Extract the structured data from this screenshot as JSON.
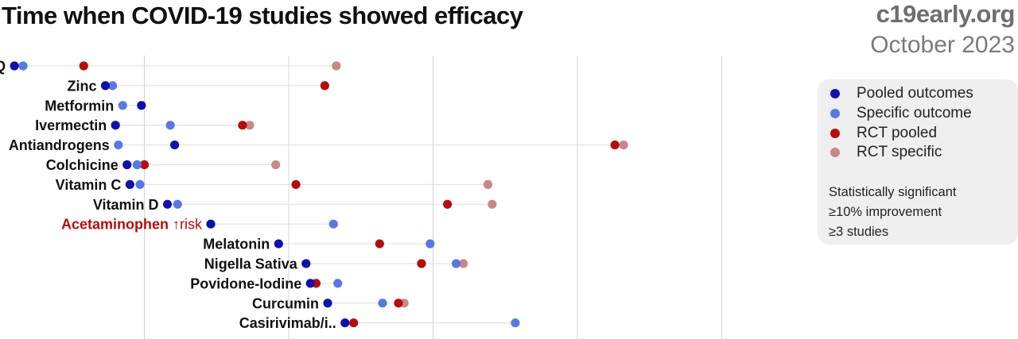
{
  "header": {
    "title": "Time when COVID-19 studies showed efficacy",
    "brand": "c19early.org",
    "date": "October 2023"
  },
  "legend": {
    "items": [
      {
        "label": "Pooled outcomes",
        "color": "#1010b0"
      },
      {
        "label": "Specific outcome",
        "color": "#5878e8"
      },
      {
        "label": "RCT pooled",
        "color": "#b80c0c"
      },
      {
        "label": "RCT specific",
        "color": "#c88888"
      }
    ],
    "notes": [
      "Statistically significant",
      "≥10% improvement",
      "≥3 studies"
    ]
  },
  "chart_data": {
    "type": "scatter",
    "colors": {
      "pooled": "#1010b0",
      "specific": "#5878e8",
      "rct_pooled": "#b80c0c",
      "rct_specific": "#c88888",
      "harm_label": "#b80c0c"
    },
    "x_gridlines": 5,
    "grid": true,
    "rows": [
      {
        "label": "HCQ",
        "pooled": 0.1,
        "specific": 0.16,
        "rct_pooled": 0.58,
        "rct_specific": 2.33
      },
      {
        "label": "Zinc",
        "pooled": 0.73,
        "specific": 0.78,
        "rct_pooled": 2.25,
        "rct_specific": null
      },
      {
        "label": "Metformin",
        "pooled": 0.98,
        "specific": 0.85,
        "rct_pooled": null,
        "rct_specific": null
      },
      {
        "label": "Ivermectin",
        "pooled": 0.8,
        "specific": 1.18,
        "rct_pooled": 1.68,
        "rct_specific": 1.73
      },
      {
        "label": "Antiandrogens",
        "pooled": 1.21,
        "specific": 0.82,
        "rct_pooled": 4.26,
        "rct_specific": 4.32
      },
      {
        "label": "Colchicine",
        "pooled": 0.88,
        "specific": 0.95,
        "rct_pooled": 1.0,
        "rct_specific": 1.91
      },
      {
        "label": "Vitamin C",
        "pooled": 0.9,
        "specific": 0.97,
        "rct_pooled": 2.05,
        "rct_specific": 3.38
      },
      {
        "label": "Vitamin D",
        "pooled": 1.16,
        "specific": 1.23,
        "rct_pooled": 3.1,
        "rct_specific": 3.41
      },
      {
        "label": "Acetaminophen",
        "label_suffix": "↑risk",
        "harm": true,
        "pooled": 1.46,
        "specific": 2.31,
        "rct_pooled": null,
        "rct_specific": null
      },
      {
        "label": "Melatonin",
        "pooled": 1.93,
        "specific": 2.98,
        "rct_pooled": 2.63,
        "rct_specific": null
      },
      {
        "label": "Nigella Sativa",
        "pooled": 2.12,
        "specific": 3.16,
        "rct_pooled": 2.92,
        "rct_specific": 3.21
      },
      {
        "label": "Povidone-Iodine",
        "pooled": 2.15,
        "specific": 2.34,
        "rct_pooled": 2.19,
        "rct_specific": null
      },
      {
        "label": "Curcumin",
        "pooled": 2.27,
        "specific": 2.65,
        "rct_pooled": 2.76,
        "rct_specific": 2.8
      },
      {
        "label": "Casirivimab/i..",
        "pooled": 2.39,
        "specific": 3.57,
        "rct_pooled": 2.45,
        "rct_specific": null
      }
    ]
  }
}
